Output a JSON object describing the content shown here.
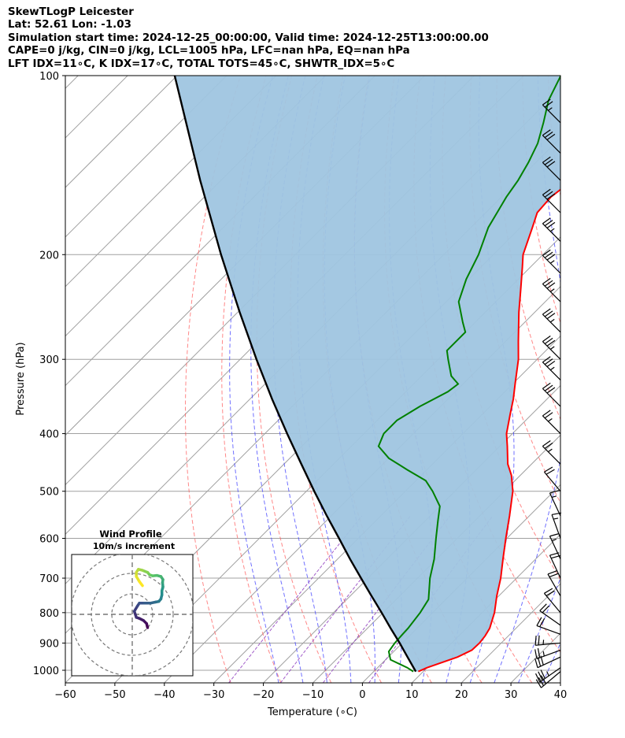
{
  "header": {
    "title": "SkewTLogP Leicester",
    "location": "Lat: 52.61   Lon: -1.03",
    "times": "Simulation start time: 2024-12-25_00:00:00, Valid time: 2024-12-25T13:00:00.00",
    "indices_1": "CAPE=0 j/kg, CIN=0 j/kg, LCL=1005 hPa, LFC=nan hPa, EQ=nan hPa",
    "indices_2": "LFT IDX=11∘C, K IDX=17∘C, TOTAL TOTS=45∘C, SHWTR_IDX=5∘C"
  },
  "colors": {
    "temperature": "#ff0000",
    "dewpoint": "#008000",
    "parcel": "#000000",
    "fill": "#9fc5e0",
    "dry_adiabat": "#ff6060",
    "moist_adiabat": "#4040ff",
    "mixing_ratio": "#9040c0",
    "isotherm": "#a0a0a0",
    "isobar": "#a0a0a0"
  },
  "chart_data": {
    "type": "line",
    "title": "",
    "xlabel": "Temperature (∘C)",
    "ylabel": "Pressure (hPa)",
    "xlim": [
      -60,
      40
    ],
    "ylim": [
      1050,
      100
    ],
    "y_scale": "log",
    "grid": true,
    "x_ticks": [
      -60,
      -50,
      -40,
      -30,
      -20,
      -10,
      0,
      10,
      20,
      30,
      40
    ],
    "y_ticks": [
      1000,
      900,
      800,
      700,
      600,
      500,
      400,
      300,
      200,
      100
    ],
    "x_tick_labels": [
      "−60",
      "−50",
      "−40",
      "−30",
      "−20",
      "−10",
      "0",
      "10",
      "20",
      "30",
      "40"
    ],
    "y_tick_labels": [
      "1000",
      "900",
      "800",
      "700",
      "600",
      "500",
      "400",
      "300",
      "200",
      "100"
    ],
    "series": [
      {
        "kind": "temperature",
        "points": [
          [
            1005,
            9.0
          ],
          [
            990,
            10.0
          ],
          [
            950,
            14.0
          ],
          [
            925,
            15.5
          ],
          [
            900,
            15.6
          ],
          [
            875,
            15.3
          ],
          [
            850,
            14.7
          ],
          [
            800,
            12.5
          ],
          [
            750,
            9.6
          ],
          [
            700,
            6.8
          ],
          [
            650,
            3.4
          ],
          [
            600,
            -0.2
          ],
          [
            550,
            -4.0
          ],
          [
            500,
            -8.3
          ],
          [
            470,
            -11.8
          ],
          [
            450,
            -14.8
          ],
          [
            420,
            -18.5
          ],
          [
            400,
            -21.2
          ],
          [
            370,
            -24.5
          ],
          [
            350,
            -26.8
          ],
          [
            330,
            -29.5
          ],
          [
            300,
            -33.8
          ],
          [
            280,
            -37.4
          ],
          [
            250,
            -43.2
          ],
          [
            230,
            -47.2
          ],
          [
            210,
            -51.6
          ],
          [
            200,
            -54.0
          ],
          [
            180,
            -57.6
          ],
          [
            170,
            -59.6
          ],
          [
            160,
            -60.0
          ],
          [
            150,
            -59.0
          ],
          [
            140,
            -59.0
          ],
          [
            130,
            -58.6
          ],
          [
            120,
            -58.8
          ],
          [
            110,
            -59.2
          ],
          [
            100,
            -60.3
          ]
        ]
      },
      {
        "kind": "dewpoint",
        "points": [
          [
            1005,
            8.0
          ],
          [
            990,
            6.0
          ],
          [
            960,
            1.0
          ],
          [
            930,
            -1.0
          ],
          [
            900,
            -1.5
          ],
          [
            870,
            -1.7
          ],
          [
            850,
            -1.8
          ],
          [
            800,
            -2.5
          ],
          [
            760,
            -3.5
          ],
          [
            700,
            -7.5
          ],
          [
            650,
            -10.5
          ],
          [
            600,
            -14.3
          ],
          [
            560,
            -17.5
          ],
          [
            530,
            -20.0
          ],
          [
            500,
            -24.5
          ],
          [
            480,
            -28.0
          ],
          [
            460,
            -34.0
          ],
          [
            440,
            -40.0
          ],
          [
            420,
            -44.5
          ],
          [
            400,
            -46.0
          ],
          [
            380,
            -46.0
          ],
          [
            360,
            -44.2
          ],
          [
            340,
            -41.5
          ],
          [
            330,
            -41.0
          ],
          [
            320,
            -44.0
          ],
          [
            300,
            -48.0
          ],
          [
            290,
            -50.0
          ],
          [
            270,
            -50.0
          ],
          [
            260,
            -52.5
          ],
          [
            240,
            -57.5
          ],
          [
            220,
            -60.5
          ],
          [
            200,
            -63.0
          ],
          [
            180,
            -66.5
          ],
          [
            160,
            -69.0
          ],
          [
            150,
            -70.0
          ],
          [
            140,
            -71.5
          ],
          [
            130,
            -73.5
          ],
          [
            120,
            -76.5
          ],
          [
            110,
            -80.0
          ],
          [
            100,
            -82.5
          ]
        ]
      },
      {
        "kind": "parcel",
        "points": [
          [
            1005,
            8.5
          ],
          [
            1000,
            8.1
          ],
          [
            950,
            3.9
          ],
          [
            900,
            -0.5
          ],
          [
            850,
            -5.3
          ],
          [
            800,
            -10.3
          ],
          [
            750,
            -15.7
          ],
          [
            700,
            -21.4
          ],
          [
            650,
            -27.5
          ],
          [
            600,
            -33.9
          ],
          [
            550,
            -40.9
          ],
          [
            500,
            -48.4
          ],
          [
            450,
            -56.5
          ],
          [
            400,
            -65.5
          ],
          [
            350,
            -75.5
          ],
          [
            300,
            -86.7
          ],
          [
            250,
            -99.6
          ],
          [
            200,
            -115.0
          ],
          [
            150,
            -134.2
          ],
          [
            100,
            -160.5
          ]
        ]
      }
    ],
    "wind_barbs": [
      {
        "p": 1005,
        "dir": 230,
        "kt": 32
      },
      {
        "p": 990,
        "dir": 235,
        "kt": 34
      },
      {
        "p": 950,
        "dir": 245,
        "kt": 32
      },
      {
        "p": 925,
        "dir": 250,
        "kt": 27
      },
      {
        "p": 900,
        "dir": 265,
        "kt": 24
      },
      {
        "p": 870,
        "dir": 290,
        "kt": 22
      },
      {
        "p": 840,
        "dir": 305,
        "kt": 20
      },
      {
        "p": 800,
        "dir": 320,
        "kt": 19
      },
      {
        "p": 750,
        "dir": 330,
        "kt": 20
      },
      {
        "p": 700,
        "dir": 335,
        "kt": 18
      },
      {
        "p": 650,
        "dir": 335,
        "kt": 16
      },
      {
        "p": 600,
        "dir": 340,
        "kt": 15
      },
      {
        "p": 550,
        "dir": 335,
        "kt": 16
      },
      {
        "p": 500,
        "dir": 320,
        "kt": 22
      },
      {
        "p": 450,
        "dir": 315,
        "kt": 27
      },
      {
        "p": 400,
        "dir": 315,
        "kt": 27
      },
      {
        "p": 360,
        "dir": 315,
        "kt": 30
      },
      {
        "p": 325,
        "dir": 315,
        "kt": 35
      },
      {
        "p": 300,
        "dir": 315,
        "kt": 35
      },
      {
        "p": 270,
        "dir": 315,
        "kt": 35
      },
      {
        "p": 240,
        "dir": 315,
        "kt": 35
      },
      {
        "p": 215,
        "dir": 315,
        "kt": 37
      },
      {
        "p": 190,
        "dir": 315,
        "kt": 35
      },
      {
        "p": 170,
        "dir": 315,
        "kt": 30
      },
      {
        "p": 150,
        "dir": 315,
        "kt": 30
      },
      {
        "p": 135,
        "dir": 315,
        "kt": 30
      },
      {
        "p": 120,
        "dir": 315,
        "kt": 25
      }
    ],
    "hodograph": {
      "title": "Wind Profile",
      "subtitle": "10m/s increment",
      "rings_ms": [
        10,
        20,
        30
      ],
      "points": [
        [
          7.5,
          -6.5
        ],
        [
          7.0,
          -4.5
        ],
        [
          5.5,
          -3.0
        ],
        [
          3.5,
          -2.0
        ],
        [
          2.0,
          -1.5
        ],
        [
          1.0,
          1.5
        ],
        [
          2.5,
          4.0
        ],
        [
          3.5,
          5.5
        ],
        [
          6.0,
          5.5
        ],
        [
          9.0,
          5.5
        ],
        [
          11.5,
          6.0
        ],
        [
          13.0,
          6.3
        ],
        [
          14.0,
          7.5
        ],
        [
          14.5,
          9.5
        ],
        [
          14.5,
          11.5
        ],
        [
          15.0,
          13.5
        ],
        [
          14.8,
          15.5
        ],
        [
          15.0,
          17.0
        ],
        [
          14.0,
          18.5
        ],
        [
          12.0,
          19.0
        ],
        [
          10.0,
          18.8
        ],
        [
          8.5,
          19.3
        ],
        [
          7.5,
          20.5
        ],
        [
          5.0,
          21.5
        ],
        [
          3.0,
          22.0
        ],
        [
          2.0,
          20.5
        ],
        [
          2.0,
          18.5
        ],
        [
          3.5,
          16.0
        ],
        [
          5.0,
          14.0
        ]
      ]
    }
  }
}
